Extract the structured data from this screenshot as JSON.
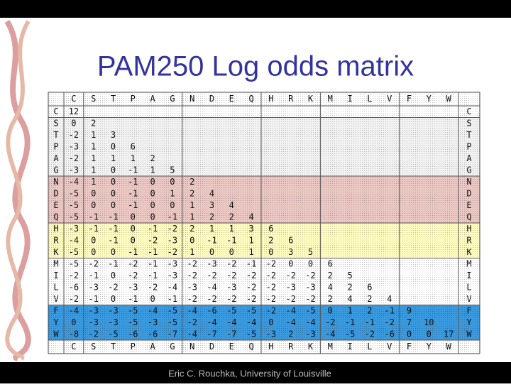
{
  "title": "PAM250 Log odds matrix",
  "table": {
    "columns": [
      "C",
      "S",
      "T",
      "P",
      "A",
      "G",
      "N",
      "D",
      "E",
      "Q",
      "H",
      "R",
      "K",
      "M",
      "I",
      "L",
      "V",
      "F",
      "Y",
      "W"
    ],
    "rows": [
      [
        12
      ],
      [
        0,
        2
      ],
      [
        -2,
        1,
        3
      ],
      [
        -3,
        1,
        0,
        6
      ],
      [
        -2,
        1,
        1,
        1,
        2
      ],
      [
        -3,
        1,
        0,
        -1,
        1,
        5
      ],
      [
        -4,
        1,
        0,
        -1,
        0,
        0,
        2
      ],
      [
        -5,
        0,
        0,
        -1,
        0,
        1,
        2,
        4
      ],
      [
        -5,
        0,
        0,
        -1,
        0,
        0,
        1,
        3,
        4
      ],
      [
        -5,
        -1,
        -1,
        0,
        0,
        -1,
        1,
        2,
        2,
        4
      ],
      [
        -3,
        -1,
        -1,
        0,
        -1,
        -2,
        2,
        1,
        1,
        3,
        6
      ],
      [
        -4,
        0,
        -1,
        0,
        -2,
        -3,
        0,
        -1,
        -1,
        1,
        2,
        6
      ],
      [
        -5,
        0,
        0,
        -1,
        -1,
        -2,
        1,
        0,
        0,
        1,
        0,
        3,
        5
      ],
      [
        -5,
        -2,
        -1,
        -2,
        -1,
        -3,
        -2,
        -3,
        -2,
        -1,
        -2,
        0,
        0,
        6
      ],
      [
        -2,
        -1,
        0,
        -2,
        -1,
        -3,
        -2,
        -2,
        -2,
        -2,
        -2,
        -2,
        -2,
        2,
        5
      ],
      [
        -6,
        -3,
        -2,
        -3,
        -2,
        -4,
        -3,
        -4,
        -3,
        -2,
        -2,
        -3,
        -3,
        4,
        2,
        6
      ],
      [
        -2,
        -1,
        0,
        -1,
        0,
        -1,
        -2,
        -2,
        -2,
        -2,
        -2,
        -2,
        -2,
        2,
        4,
        2,
        4
      ],
      [
        -4,
        -3,
        -3,
        -5,
        -4,
        -5,
        -4,
        -6,
        -5,
        -5,
        -2,
        -4,
        -5,
        0,
        1,
        2,
        -1,
        9
      ],
      [
        0,
        -3,
        -3,
        -5,
        -3,
        -5,
        -2,
        -4,
        -4,
        -4,
        0,
        -4,
        -4,
        -2,
        -1,
        -1,
        -2,
        7,
        10
      ],
      [
        -8,
        -2,
        -5,
        -6,
        -6,
        -7,
        -4,
        -7,
        -7,
        -5,
        -3,
        2,
        -3,
        -4,
        -5,
        -2,
        -6,
        0,
        0,
        17
      ]
    ]
  },
  "footer": "Eric C. Rouchka, University of Louisville"
}
